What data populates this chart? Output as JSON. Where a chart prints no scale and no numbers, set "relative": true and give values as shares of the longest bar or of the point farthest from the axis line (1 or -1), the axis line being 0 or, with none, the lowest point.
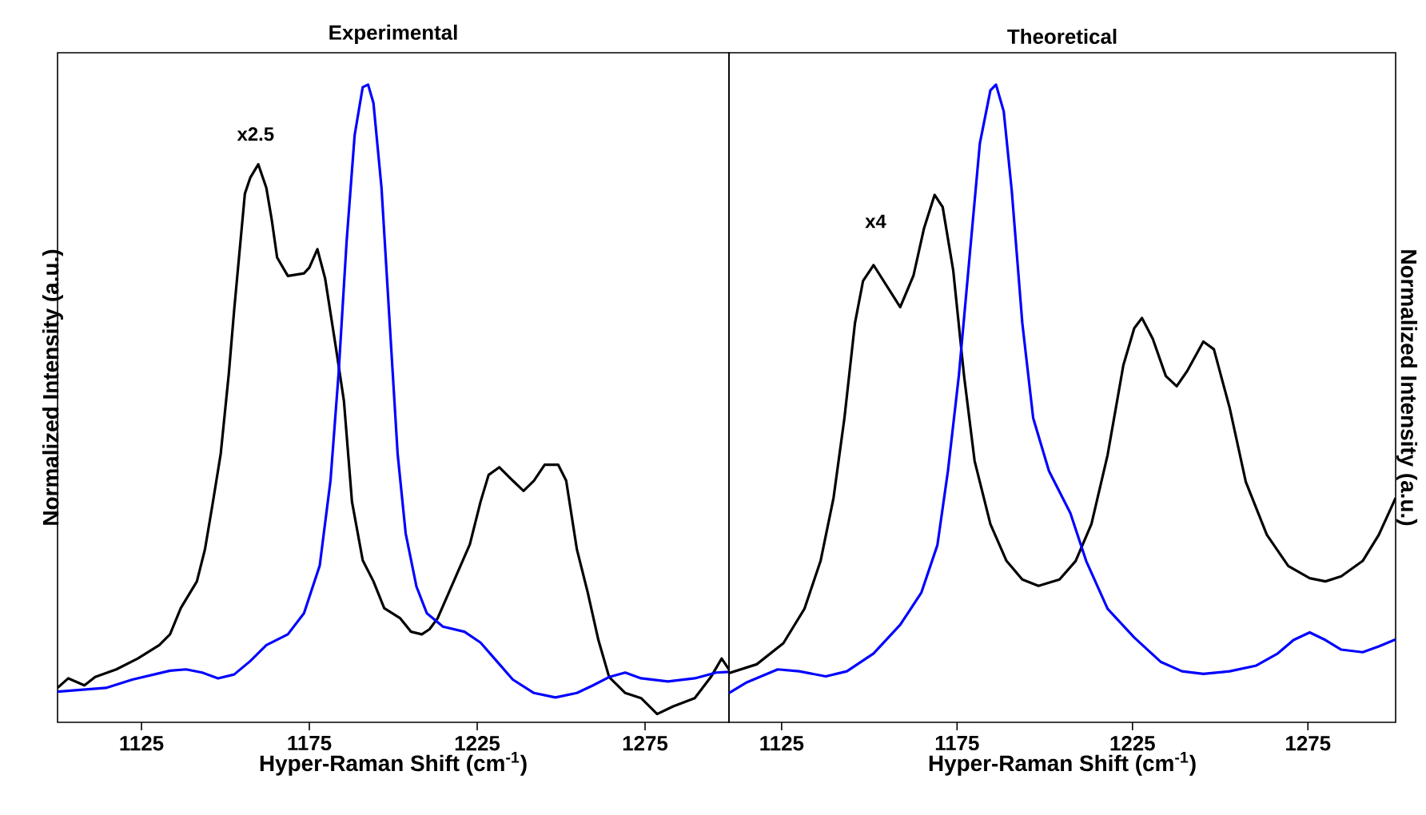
{
  "chart_data": [
    {
      "type": "line",
      "title": "Experimental",
      "xlabel": "Hyper-Raman Shift (cm$^{-1}$)",
      "ylabel": "Normalized Intensity (a.u.)",
      "relative": true,
      "tick_labels": "x",
      "xlim": [
        1100,
        1300
      ],
      "xticks": [
        1125,
        1175,
        1225,
        1275
      ],
      "annotations": [
        "x2.5"
      ],
      "series": [
        {
          "color": "#000000",
          "x": [
            1100,
            1103.2,
            1108.0,
            1111.2,
            1117.5,
            1123.9,
            1130.3,
            1133.5,
            1136.7,
            1141.5,
            1143.9,
            1146.3,
            1148.6,
            1151.0,
            1152.6,
            1155.8,
            1157.4,
            1159.8,
            1162.2,
            1163.8,
            1165.4,
            1168.6,
            1173.4,
            1175.0,
            1177.4,
            1179.7,
            1182.9,
            1185.3,
            1187.7,
            1190.9,
            1194.1,
            1197.3,
            1202.1,
            1205.3,
            1208.5,
            1210.8,
            1213.2,
            1218.0,
            1222.8,
            1226.0,
            1228.4,
            1231.6,
            1235.6,
            1238.8,
            1241.9,
            1245.1,
            1249.1,
            1251.5,
            1254.7,
            1257.9,
            1261.1,
            1264.3,
            1269.1,
            1273.8,
            1278.6,
            1283.4,
            1289.8,
            1294.6,
            1297.8,
            1300
          ],
          "values": [
            0.054,
            0.069,
            0.058,
            0.071,
            0.083,
            0.1,
            0.121,
            0.138,
            0.179,
            0.221,
            0.271,
            0.346,
            0.421,
            0.546,
            0.646,
            0.829,
            0.854,
            0.875,
            0.838,
            0.788,
            0.729,
            0.7,
            0.704,
            0.713,
            0.742,
            0.696,
            0.588,
            0.504,
            0.346,
            0.254,
            0.221,
            0.179,
            0.163,
            0.142,
            0.138,
            0.146,
            0.163,
            0.221,
            0.279,
            0.346,
            0.388,
            0.4,
            0.379,
            0.363,
            0.379,
            0.404,
            0.404,
            0.379,
            0.271,
            0.204,
            0.129,
            0.071,
            0.046,
            0.038,
            0.013,
            0.025,
            0.038,
            0.071,
            0.1,
            0.083
          ]
        },
        {
          "color": "#0000ff",
          "x": [
            1100,
            1114.4,
            1122.3,
            1133.5,
            1138.3,
            1143.1,
            1147.8,
            1152.6,
            1157.4,
            1162.2,
            1168.6,
            1173.4,
            1178.1,
            1181.3,
            1183.7,
            1186.1,
            1188.5,
            1190.9,
            1192.5,
            1194.1,
            1196.5,
            1198.9,
            1201.3,
            1203.7,
            1206.9,
            1210.0,
            1214.8,
            1221.2,
            1226.0,
            1230.8,
            1235.6,
            1241.9,
            1248.3,
            1254.7,
            1259.5,
            1264.3,
            1269.1,
            1273.8,
            1281.8,
            1289.8,
            1296.2,
            1300
          ],
          "values": [
            0.048,
            0.054,
            0.067,
            0.081,
            0.083,
            0.078,
            0.069,
            0.075,
            0.096,
            0.121,
            0.138,
            0.171,
            0.246,
            0.379,
            0.546,
            0.754,
            0.921,
            0.996,
            1.0,
            0.971,
            0.838,
            0.629,
            0.421,
            0.296,
            0.213,
            0.171,
            0.15,
            0.142,
            0.125,
            0.096,
            0.067,
            0.046,
            0.039,
            0.046,
            0.058,
            0.071,
            0.078,
            0.069,
            0.064,
            0.069,
            0.078,
            0.079
          ]
        }
      ]
    },
    {
      "type": "line",
      "title": "Theoretical",
      "xlabel": "Hyper-Raman Shift (cm$^{-1}$)",
      "ylabel": "Normalized Intensity (a.u.)",
      "relative": true,
      "tick_labels": "x",
      "xlim": [
        1110,
        1300
      ],
      "xticks": [
        1125,
        1175,
        1225,
        1275
      ],
      "annotations": [
        "x4"
      ],
      "series": [
        {
          "color": "#000000",
          "x": [
            1110,
            1117.9,
            1125.5,
            1131.5,
            1136.1,
            1139.8,
            1142.9,
            1145.9,
            1148.2,
            1151.2,
            1155.0,
            1158.8,
            1162.6,
            1165.6,
            1168.6,
            1170.9,
            1173.9,
            1177.0,
            1180.0,
            1184.5,
            1189.1,
            1193.6,
            1198.2,
            1204.2,
            1208.8,
            1213.3,
            1217.9,
            1222.4,
            1225.5,
            1227.7,
            1230.8,
            1234.5,
            1237.6,
            1240.6,
            1245.2,
            1248.2,
            1252.7,
            1257.3,
            1263.3,
            1269.4,
            1275.5,
            1280.0,
            1284.5,
            1290.6,
            1295.2,
            1300
          ],
          "values": [
            0.077,
            0.091,
            0.124,
            0.178,
            0.253,
            0.352,
            0.477,
            0.626,
            0.692,
            0.717,
            0.684,
            0.651,
            0.701,
            0.775,
            0.827,
            0.808,
            0.709,
            0.543,
            0.41,
            0.311,
            0.253,
            0.224,
            0.214,
            0.224,
            0.253,
            0.311,
            0.419,
            0.56,
            0.618,
            0.634,
            0.601,
            0.543,
            0.527,
            0.551,
            0.597,
            0.585,
            0.493,
            0.377,
            0.294,
            0.245,
            0.226,
            0.221,
            0.229,
            0.253,
            0.294,
            0.352
          ]
        },
        {
          "color": "#0000ff",
          "x": [
            1110,
            1114.8,
            1123.9,
            1130,
            1137.6,
            1143.6,
            1151.2,
            1158.8,
            1164.8,
            1169.4,
            1172.4,
            1175.5,
            1178.5,
            1181.5,
            1184.5,
            1186.1,
            1188.3,
            1190.6,
            1193.6,
            1196.7,
            1201.2,
            1207.3,
            1211.8,
            1217.9,
            1225.5,
            1233.0,
            1239.1,
            1245.2,
            1252.7,
            1260.3,
            1266.4,
            1270.9,
            1275.5,
            1280.0,
            1284.5,
            1290.6,
            1295.2,
            1300
          ],
          "values": [
            0.046,
            0.062,
            0.083,
            0.08,
            0.072,
            0.08,
            0.108,
            0.153,
            0.203,
            0.278,
            0.394,
            0.543,
            0.726,
            0.908,
            0.991,
            1.0,
            0.958,
            0.833,
            0.626,
            0.477,
            0.394,
            0.328,
            0.253,
            0.178,
            0.133,
            0.095,
            0.08,
            0.076,
            0.08,
            0.089,
            0.108,
            0.129,
            0.141,
            0.129,
            0.114,
            0.11,
            0.119,
            0.13
          ]
        }
      ]
    }
  ]
}
